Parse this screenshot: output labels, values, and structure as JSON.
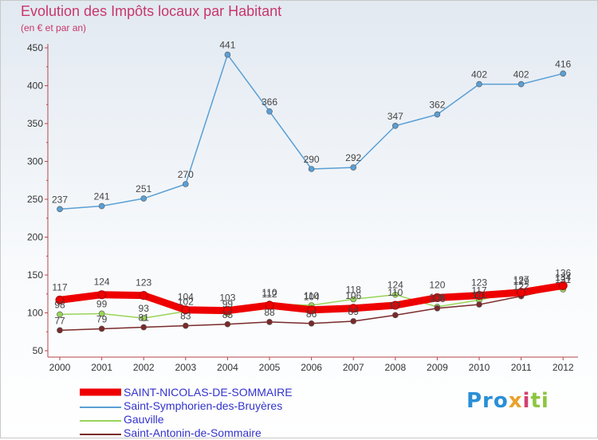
{
  "title": "Evolution des Impôts locaux par Habitant",
  "subtitle": "(en € et par an)",
  "logo": {
    "text": "Proxiti"
  },
  "chart_data": {
    "type": "line",
    "title": "Evolution des Impôts locaux par Habitant",
    "subtitle": "(en € et par an)",
    "categories": [
      "2000",
      "2001",
      "2002",
      "2003",
      "2004",
      "2005",
      "2006",
      "2007",
      "2008",
      "2009",
      "2010",
      "2011",
      "2012"
    ],
    "ylim": [
      50,
      450
    ],
    "yticks": [
      "50",
      "100",
      "150",
      "200",
      "250",
      "300",
      "350",
      "400",
      "450"
    ],
    "grid": false,
    "legend_position": "bottom-left",
    "series": [
      {
        "name": "Saint-Symphorien-des-Bruyères",
        "color": "#5a9fd4",
        "values": [
          237,
          241,
          251,
          270,
          441,
          366,
          290,
          292,
          347,
          362,
          402,
          402,
          416
        ],
        "labels": [
          "237",
          "241",
          "251",
          "270",
          "441",
          "366",
          "290",
          "292",
          "347",
          "362",
          "402",
          "402",
          "416"
        ]
      },
      {
        "name": "Gauville",
        "color": "#99d45a",
        "values": [
          98,
          99,
          93,
          102,
          99,
          112,
          110,
          118,
          124,
          108,
          117,
          129,
          131
        ],
        "labels": [
          "98",
          "99",
          "93",
          "102",
          "99",
          "112",
          "110",
          "118",
          "124",
          "108",
          "117",
          "129",
          "131"
        ]
      },
      {
        "name": "Saint-Antonin-de-Sommaire",
        "color": "#7a2a2a",
        "values": [
          77,
          79,
          81,
          83,
          85,
          88,
          86,
          89,
          97,
          106,
          111,
          122,
          134
        ],
        "labels": [
          "77",
          "79",
          "81",
          "83",
          "85",
          "88",
          "86",
          "89",
          "97",
          "106",
          "111",
          "122",
          "134"
        ]
      },
      {
        "name": "SAINT-NICOLAS-DE-SOMMAIRE",
        "color": "#ee0000",
        "values": [
          117,
          124,
          123,
          104,
          103,
          110,
          104,
          106,
          110,
          120,
          123,
          127,
          136
        ],
        "labels": [
          "117",
          "124",
          "123",
          "104",
          "103",
          "110",
          "104",
          "106",
          "110",
          "120",
          "123",
          "127",
          "136"
        ]
      }
    ]
  }
}
